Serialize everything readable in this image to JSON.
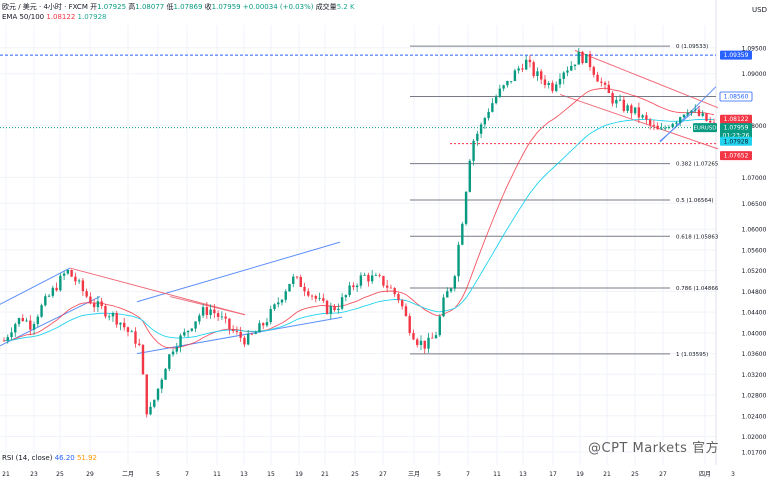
{
  "header": {
    "symbol_line": "欧元 / 美元 · 4小时 · FXCM",
    "open_label": "开",
    "open": "1.07925",
    "high_label": "高",
    "high": "1.08077",
    "low_label": "低",
    "low": "1.07869",
    "close_label": "收",
    "close": "1.07959",
    "change": "+0.00034 (+0.03%)",
    "volume_label": "成交量",
    "volume": "5.2 K",
    "ema_label": "EMA 50/100",
    "ema50": "1.08122",
    "ema100": "1.07928"
  },
  "currency": "USD",
  "rsi": {
    "label": "RSI (14, close)",
    "v1": "46.20",
    "v2": "51.92"
  },
  "watermark": "@CPT Markets 官方",
  "colors": {
    "up": "#089981",
    "down": "#f23645",
    "ema50": "#f23645",
    "ema100": "#22d3ee",
    "channel_blue": "#5b8ff9",
    "channel_red": "#f06b7a",
    "fib": "#787b86",
    "accent_blue": "#2962ff"
  },
  "chart_data": {
    "type": "candlestick",
    "instrument": "EURUSD",
    "y_axis": {
      "ticks": [
        "1.09500",
        "1.09000",
        "1.08000",
        "1.07000",
        "1.06500",
        "1.06000",
        "1.05600",
        "1.05200",
        "1.04800",
        "1.04400",
        "1.04000",
        "1.03600",
        "1.03200",
        "1.02800",
        "1.02400",
        "1.02000",
        "1.01700"
      ],
      "ylim": [
        1.0145,
        1.0994
      ]
    },
    "x_axis": {
      "tick_labels": [
        "21",
        "23",
        "25",
        "29",
        "二月",
        "5",
        "7",
        "11",
        "13",
        "15",
        "19",
        "21",
        "25",
        "27",
        "三月",
        "5",
        "7",
        "11",
        "13",
        "17",
        "19",
        "21",
        "25",
        "27",
        "四月",
        "3"
      ]
    },
    "price_labels": [
      {
        "text": "1.09359",
        "kind": "level"
      },
      {
        "text": "1.08560",
        "kind": "level"
      },
      {
        "text": "1.08122",
        "kind": "ema50"
      },
      {
        "text": "EURUSD",
        "kind": "symbol"
      },
      {
        "text": "1.07959",
        "kind": "last"
      },
      {
        "text": "01:23:26",
        "kind": "countdown"
      },
      {
        "text": "1.07928",
        "kind": "ema100"
      },
      {
        "text": "1.07652",
        "kind": "level_red"
      }
    ],
    "fib_levels": [
      {
        "ratio": "0",
        "price": "1.09533"
      },
      {
        "ratio": "0.382",
        "price": "1.07265"
      },
      {
        "ratio": "0.5",
        "price": "1.06564"
      },
      {
        "ratio": "0.618",
        "price": "1.05863"
      },
      {
        "ratio": "0.786",
        "price": "1.04866"
      },
      {
        "ratio": "1",
        "price": "1.03595"
      }
    ],
    "close_path": [
      1.0385,
      1.0415,
      1.043,
      1.0415,
      1.0445,
      1.047,
      1.0495,
      1.052,
      1.05,
      1.0475,
      1.0455,
      1.0445,
      1.0435,
      1.042,
      1.0398,
      1.038,
      1.0235,
      1.0285,
      1.034,
      1.038,
      1.0395,
      1.042,
      1.044,
      1.0445,
      1.043,
      1.041,
      1.0395,
      1.0385,
      1.04,
      1.042,
      1.0445,
      1.0475,
      1.0505,
      1.0495,
      1.048,
      1.046,
      1.0445,
      1.045,
      1.047,
      1.0495,
      1.051,
      1.0505,
      1.05,
      1.0485,
      1.0465,
      1.0415,
      1.0385,
      1.0375,
      1.0395,
      1.0465,
      1.05,
      1.062,
      1.0765,
      1.0795,
      1.0835,
      1.0862,
      1.088,
      1.0905,
      1.0925,
      1.09,
      1.0888,
      1.0875,
      1.0905,
      1.0915,
      1.0935,
      1.0925,
      1.0895,
      1.0865,
      1.0845,
      1.0835,
      1.0828,
      1.0815,
      1.0798,
      1.0785,
      1.0805,
      1.0815,
      1.0835,
      1.0822,
      1.0812,
      1.0796
    ]
  }
}
